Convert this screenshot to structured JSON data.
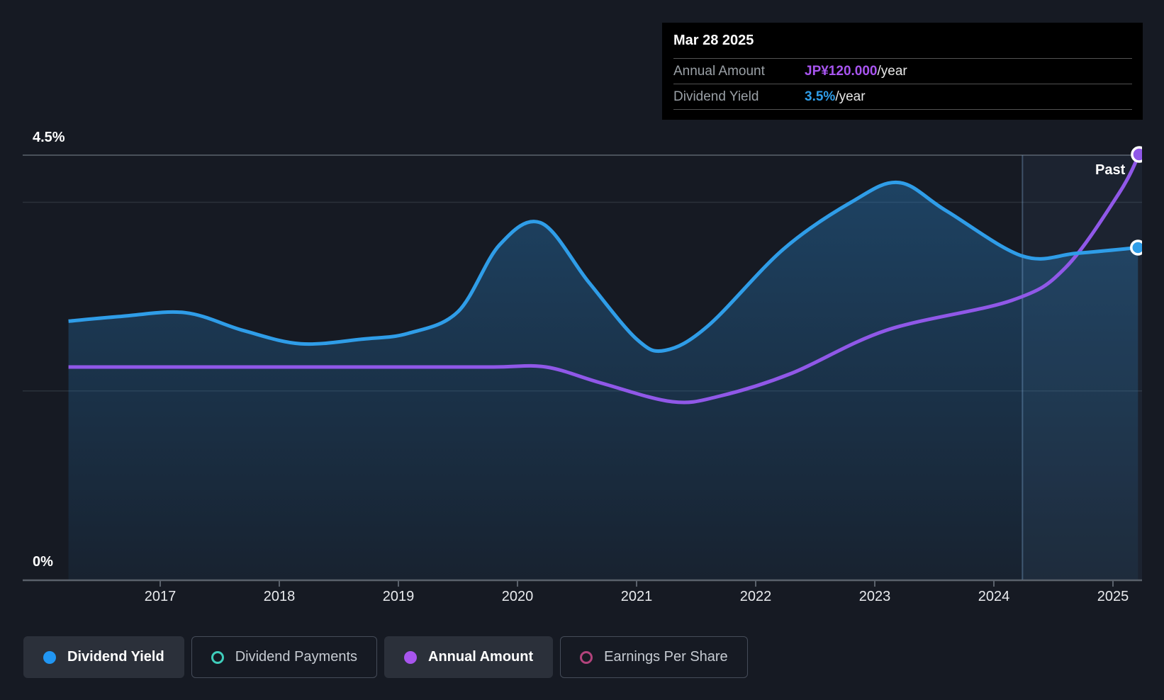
{
  "tooltip": {
    "title": "Mar 28 2025",
    "rows": [
      {
        "label": "Annual Amount",
        "value": "JP¥120.000",
        "unit": "/year",
        "color": "#a855f0"
      },
      {
        "label": "Dividend Yield",
        "value": "3.5%",
        "unit": "/year",
        "color": "#2f9de8"
      }
    ]
  },
  "axis": {
    "y_top_label": "4.5%",
    "y_bottom_label": "0%"
  },
  "past_label": "Past",
  "legend": [
    {
      "label": "Dividend Yield",
      "marker": "filled",
      "color": "#2196f3",
      "active": true
    },
    {
      "label": "Dividend Payments",
      "marker": "ring",
      "color": "#3fcdbb",
      "active": false
    },
    {
      "label": "Annual Amount",
      "marker": "filled",
      "color": "#a855ee",
      "active": true
    },
    {
      "label": "Earnings Per Share",
      "marker": "ring",
      "color": "#b2437c",
      "active": false
    }
  ],
  "chart_data": {
    "type": "line",
    "title": "Dividend yield and annual dividend amount over time",
    "x_labels": [
      "2017",
      "2018",
      "2019",
      "2020",
      "2021",
      "2022",
      "2023",
      "2024",
      "2025"
    ],
    "x_range": [
      2016.23,
      2025.27
    ],
    "yield_axis": {
      "min": 0,
      "max": 4.5,
      "unit": "%",
      "top_tick_label": "4.5%",
      "bottom_tick_label": "0%"
    },
    "amount_axis": {
      "unit": "JP¥",
      "latest_value": 120
    },
    "grid": {
      "strong_yield_lines": [
        4.5
      ],
      "faint_yield_lines": [
        4.0,
        2.0
      ],
      "baseline": 0
    },
    "past_divider_year": 2024.24,
    "legend_position": "bottom",
    "series": [
      {
        "name": "Dividend Yield",
        "color": "#2f9de8",
        "scale": "yield",
        "area": true,
        "end_marker": "blue-dot-white-ring",
        "points": [
          [
            2016.23,
            2.74
          ],
          [
            2016.67,
            2.79
          ],
          [
            2017.21,
            2.83
          ],
          [
            2017.7,
            2.64
          ],
          [
            2018.18,
            2.5
          ],
          [
            2018.7,
            2.55
          ],
          [
            2019.08,
            2.61
          ],
          [
            2019.5,
            2.84
          ],
          [
            2019.85,
            3.55
          ],
          [
            2020.2,
            3.78
          ],
          [
            2020.6,
            3.15
          ],
          [
            2021.0,
            2.55
          ],
          [
            2021.24,
            2.43
          ],
          [
            2021.6,
            2.69
          ],
          [
            2022.23,
            3.5
          ],
          [
            2022.8,
            4.0
          ],
          [
            2023.2,
            4.21
          ],
          [
            2023.6,
            3.91
          ],
          [
            2024.24,
            3.43
          ],
          [
            2024.7,
            3.46
          ],
          [
            2025.21,
            3.52
          ]
        ]
      },
      {
        "name": "Annual Amount",
        "color": "#9058e8",
        "scale": "amount",
        "area": false,
        "end_marker": "purple-dot-white-ring",
        "points": [
          [
            2016.23,
            60
          ],
          [
            2017.0,
            60
          ],
          [
            2018.0,
            60
          ],
          [
            2019.0,
            60
          ],
          [
            2019.8,
            60
          ],
          [
            2020.24,
            60
          ],
          [
            2020.7,
            55.5
          ],
          [
            2021.3,
            50.2
          ],
          [
            2021.7,
            51.8
          ],
          [
            2022.3,
            58.2
          ],
          [
            2023.1,
            70.4
          ],
          [
            2024.15,
            78.8
          ],
          [
            2024.6,
            88.0
          ],
          [
            2025.05,
            109.0
          ],
          [
            2025.22,
            120.0
          ]
        ]
      }
    ]
  }
}
